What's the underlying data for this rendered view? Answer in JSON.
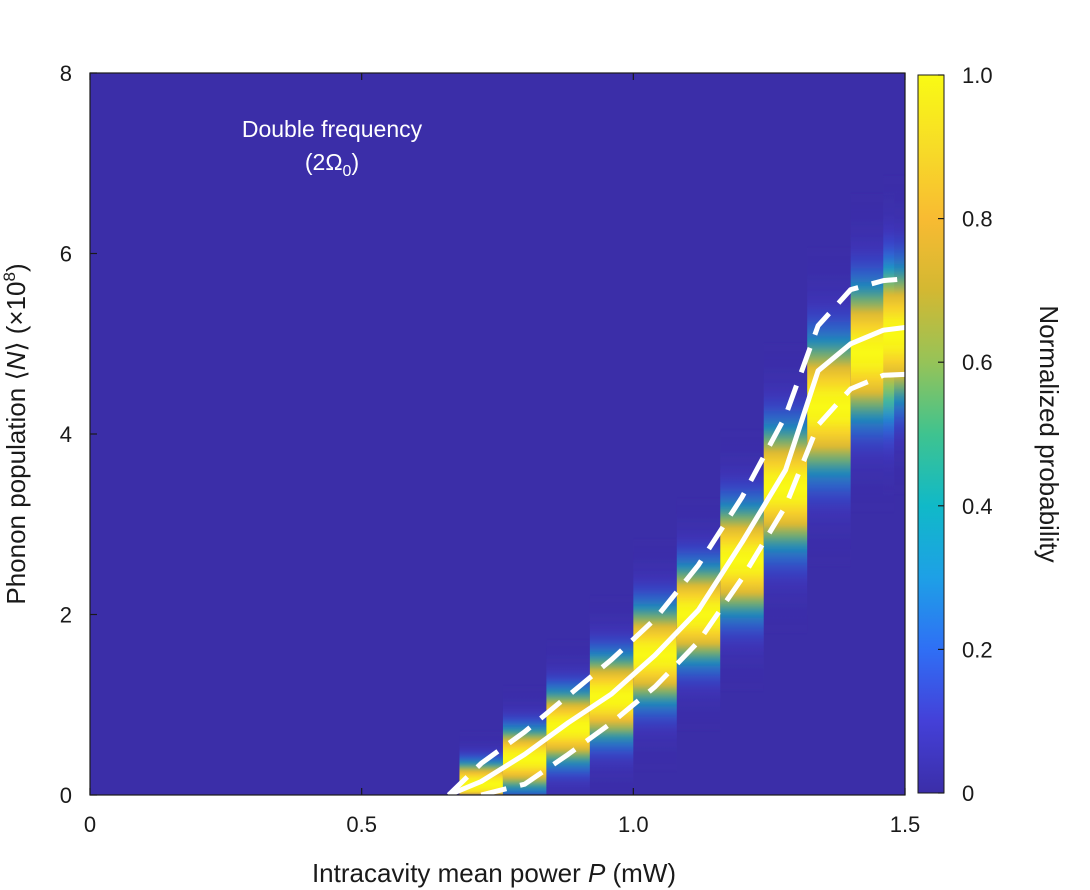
{
  "chart_data": {
    "type": "heatmap",
    "title": "",
    "annotation": {
      "line1": "Double frequency",
      "line2_prefix": "(2Ω",
      "line2_subscript": "0",
      "line2_suffix": ")"
    },
    "xlabel": {
      "text": "Intracavity mean power ",
      "var": "P",
      "unit": " (mW)"
    },
    "ylabel": {
      "text": "Phonon population ⟨",
      "var": "N",
      "mid": "⟩ (×10",
      "exp": "8",
      "end": ")"
    },
    "xlim": [
      0,
      1.5
    ],
    "ylim": [
      0,
      8
    ],
    "x_ticks": [
      0,
      0.5,
      1.0,
      1.5
    ],
    "x_tick_labels": [
      "0",
      "0.5",
      "1.0",
      "1.5"
    ],
    "y_ticks": [
      0,
      2,
      4,
      6,
      8
    ],
    "y_tick_labels": [
      "0",
      "2",
      "4",
      "6",
      "8"
    ],
    "colorbar": {
      "label": "Normalized probability",
      "range": [
        0,
        1
      ],
      "ticks": [
        0,
        0.2,
        0.4,
        0.6,
        0.8,
        1.0
      ],
      "tick_labels": [
        "0",
        "0.2",
        "0.4",
        "0.6",
        "0.8",
        "1.0"
      ],
      "colormap": [
        "#3b2ea8",
        "#4440d8",
        "#2f6ff5",
        "#1ea0e6",
        "#10b9c8",
        "#3fc38f",
        "#96c358",
        "#d3b832",
        "#f8bb32",
        "#f7dc27",
        "#f9fa14"
      ]
    },
    "background_color": "#3b2ea8",
    "distribution_columns": [
      {
        "x": 0.72,
        "mean": 0.12,
        "sigma": 0.18
      },
      {
        "x": 0.8,
        "mean": 0.4,
        "sigma": 0.25
      },
      {
        "x": 0.88,
        "mean": 0.75,
        "sigma": 0.3
      },
      {
        "x": 0.96,
        "mean": 1.08,
        "sigma": 0.35
      },
      {
        "x": 1.04,
        "mean": 1.55,
        "sigma": 0.4
      },
      {
        "x": 1.12,
        "mean": 2.0,
        "sigma": 0.4
      },
      {
        "x": 1.2,
        "mean": 2.6,
        "sigma": 0.45
      },
      {
        "x": 1.28,
        "mean": 3.4,
        "sigma": 0.5
      },
      {
        "x": 1.36,
        "mean": 4.3,
        "sigma": 0.55
      },
      {
        "x": 1.44,
        "mean": 4.9,
        "sigma": 0.55
      },
      {
        "x": 1.5,
        "mean": 5.1,
        "sigma": 0.55
      }
    ],
    "series": [
      {
        "name": "mean",
        "style": "solid",
        "x": [
          0.66,
          0.72,
          0.8,
          0.88,
          0.96,
          1.04,
          1.12,
          1.2,
          1.28,
          1.34,
          1.4,
          1.46,
          1.5
        ],
        "y": [
          0.0,
          0.15,
          0.45,
          0.8,
          1.12,
          1.55,
          2.05,
          2.8,
          3.6,
          4.7,
          5.0,
          5.15,
          5.18
        ]
      },
      {
        "name": "upper bound",
        "style": "dashed",
        "x": [
          0.66,
          0.72,
          0.8,
          0.88,
          0.96,
          1.04,
          1.12,
          1.2,
          1.28,
          1.34,
          1.4,
          1.46,
          1.5
        ],
        "y": [
          0.0,
          0.35,
          0.7,
          1.1,
          1.5,
          1.95,
          2.55,
          3.3,
          4.2,
          5.2,
          5.6,
          5.7,
          5.72
        ]
      },
      {
        "name": "lower bound",
        "style": "dashed",
        "x": [
          0.72,
          0.8,
          0.88,
          0.96,
          1.04,
          1.12,
          1.2,
          1.28,
          1.34,
          1.4,
          1.46,
          1.5
        ],
        "y": [
          0.0,
          0.12,
          0.45,
          0.8,
          1.2,
          1.7,
          2.4,
          3.2,
          4.1,
          4.5,
          4.65,
          4.66
        ]
      }
    ]
  }
}
